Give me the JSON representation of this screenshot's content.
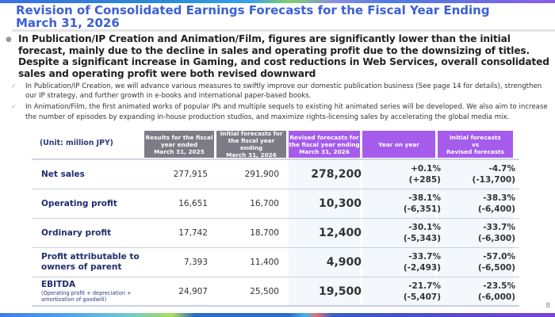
{
  "slide": {
    "title": "Revision of Consolidated Earnings Forecasts for the Fiscal Year Ending March 31, 2026",
    "page_number": "8",
    "main_bullet": {
      "line1": "In Publication/IP Creation and Animation/Film, figures are significantly lower than the initial forecast, mainly due to the decline in sales and operating profit due to the downsizing of titles.",
      "line2": "Despite a significant increase in Gaming, and cost reductions in Web Services, overall consolidated sales and operating profit were both revised downward"
    },
    "sub_bullets": [
      "In Publication/IP Creation, we will advance various measures to swiftly improve our domestic publication business (See page 14 for details), strengthen our IP strategy, and further growth in e-books and international paper-based books.",
      "In Animation/Film, the first animated works of popular IPs and multiple sequels to existing hit animated series will be developed. We also aim to increase the number of episodes by expanding in-house production studios, and maximize rights-licensing sales by accelerating the global media mix."
    ]
  },
  "table": {
    "unit_label": "(Unit: million JPY)",
    "headers": {
      "results_2025": [
        "Results for the fiscal",
        "year ended",
        "March 31, 2025"
      ],
      "initial_2026": [
        "Initial forecasts for",
        "the fiscal year ending",
        "March 31, 2026"
      ],
      "revised_2026": [
        "Revised forecasts for",
        "the fiscal year ending",
        "March 31, 2026"
      ],
      "yoy": [
        "Year on year"
      ],
      "init_vs_rev": [
        "Initial forecasts",
        "vs",
        "Revised forecasts"
      ]
    },
    "colors": {
      "gray_header": "#7d7c86",
      "purple_header": "#a55cec",
      "label_text": "#1f2d6e",
      "title_text": "#3b5fd6"
    },
    "rows": [
      {
        "label": "Net sales",
        "sublabel": "",
        "results": "277,915",
        "initial": "291,900",
        "revised": "278,200",
        "yoy_pct": "+0.1%",
        "yoy_abs": "(+285)",
        "ivr_pct": "-4.7%",
        "ivr_abs": "(-13,700)"
      },
      {
        "label": "Operating profit",
        "sublabel": "",
        "results": "16,651",
        "initial": "16,700",
        "revised": "10,300",
        "yoy_pct": "-38.1%",
        "yoy_abs": "(-6,351)",
        "ivr_pct": "-38.3%",
        "ivr_abs": "(-6,400)"
      },
      {
        "label": "Ordinary profit",
        "sublabel": "",
        "results": "17,742",
        "initial": "18,700",
        "revised": "12,400",
        "yoy_pct": "-30.1%",
        "yoy_abs": "(-5,343)",
        "ivr_pct": "-33.7%",
        "ivr_abs": "(-6,300)"
      },
      {
        "label": "Profit attributable to owners of parent",
        "sublabel": "",
        "results": "7,393",
        "initial": "11,400",
        "revised": "4,900",
        "yoy_pct": "-33.7%",
        "yoy_abs": "(-2,493)",
        "ivr_pct": "-57.0%",
        "ivr_abs": "(-6,500)"
      },
      {
        "label": "EBITDA",
        "sublabel": "(Operating profit + depreciation + amortization of goodwill)",
        "results": "24,907",
        "initial": "25,500",
        "revised": "19,500",
        "yoy_pct": "-21.7%",
        "yoy_abs": "(-5,407)",
        "ivr_pct": "-23.5%",
        "ivr_abs": "(-6,000)"
      }
    ]
  }
}
